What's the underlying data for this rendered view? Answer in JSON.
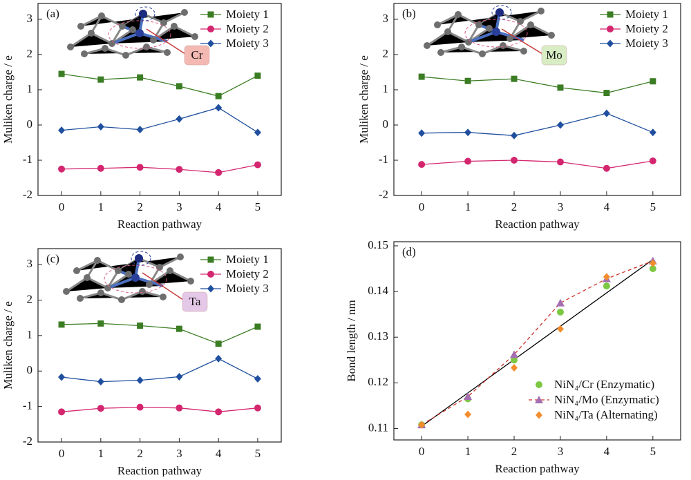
{
  "chart_data": [
    {
      "type": "line",
      "panel_label": "(a)",
      "annotation": {
        "text": "Cr",
        "color": "#f3b9b2"
      },
      "x_label": "Reaction pathway",
      "y_label": "Muliken charge / e",
      "x": [
        0,
        1,
        2,
        3,
        4,
        5
      ],
      "xlim": [
        -0.6,
        5.6
      ],
      "xticks": [
        0,
        1,
        2,
        3,
        4,
        5
      ],
      "ylim": [
        -2,
        3.45
      ],
      "yticks": [
        -2,
        -1,
        0,
        1,
        2,
        3
      ],
      "legend": "upper right",
      "series": [
        {
          "name": "Moiety 1",
          "color": "#3b7d23",
          "marker": "square",
          "line": "solid",
          "values": [
            1.45,
            1.29,
            1.35,
            1.1,
            0.82,
            1.4
          ]
        },
        {
          "name": "Moiety 2",
          "color": "#d4266f",
          "marker": "circle",
          "line": "solid",
          "values": [
            -1.25,
            -1.23,
            -1.2,
            -1.26,
            -1.35,
            -1.13
          ]
        },
        {
          "name": "Moiety 3",
          "color": "#1f4f9e",
          "marker": "diamond",
          "line": "solid",
          "values": [
            -0.15,
            -0.05,
            -0.13,
            0.17,
            0.49,
            -0.21
          ]
        }
      ]
    },
    {
      "type": "line",
      "panel_label": "(b)",
      "annotation": {
        "text": "Mo",
        "color": "#d8edc4"
      },
      "x_label": "Reaction pathway",
      "y_label": "Muliken charge / e",
      "x": [
        0,
        1,
        2,
        3,
        4,
        5
      ],
      "xlim": [
        -0.6,
        5.6
      ],
      "xticks": [
        0,
        1,
        2,
        3,
        4,
        5
      ],
      "ylim": [
        -2,
        3.45
      ],
      "yticks": [
        -2,
        -1,
        0,
        1,
        2,
        3
      ],
      "legend": "upper right",
      "series": [
        {
          "name": "Moiety 1",
          "color": "#3b7d23",
          "marker": "square",
          "line": "solid",
          "values": [
            1.37,
            1.25,
            1.31,
            1.06,
            0.91,
            1.24
          ]
        },
        {
          "name": "Moiety 2",
          "color": "#d4266f",
          "marker": "circle",
          "line": "solid",
          "values": [
            -1.12,
            -1.03,
            -1.0,
            -1.05,
            -1.23,
            -1.02
          ]
        },
        {
          "name": "Moiety 3",
          "color": "#1f4f9e",
          "marker": "diamond",
          "line": "solid",
          "values": [
            -0.23,
            -0.21,
            -0.3,
            0.0,
            0.33,
            -0.21
          ]
        }
      ]
    },
    {
      "type": "line",
      "panel_label": "(c)",
      "annotation": {
        "text": "Ta",
        "color": "#e5c8e7"
      },
      "x_label": "Reaction pathway",
      "y_label": "Muliken charge / e",
      "x": [
        0,
        1,
        2,
        3,
        4,
        5
      ],
      "xlim": [
        -0.6,
        5.6
      ],
      "xticks": [
        0,
        1,
        2,
        3,
        4,
        5
      ],
      "ylim": [
        -2,
        3.45
      ],
      "yticks": [
        -2,
        -1,
        0,
        1,
        2,
        3
      ],
      "legend": "upper right",
      "series": [
        {
          "name": "Moiety 1",
          "color": "#3b7d23",
          "marker": "square",
          "line": "solid",
          "values": [
            1.31,
            1.34,
            1.28,
            1.19,
            0.77,
            1.25
          ]
        },
        {
          "name": "Moiety 2",
          "color": "#d4266f",
          "marker": "circle",
          "line": "solid",
          "values": [
            -1.15,
            -1.05,
            -1.02,
            -1.04,
            -1.15,
            -1.04
          ]
        },
        {
          "name": "Moiety 3",
          "color": "#1f4f9e",
          "marker": "diamond",
          "line": "solid",
          "values": [
            -0.17,
            -0.3,
            -0.26,
            -0.16,
            0.35,
            -0.22
          ]
        }
      ]
    },
    {
      "type": "scatter",
      "panel_label": "(d)",
      "x_label": "Reaction pathway",
      "y_label": "Bond length / nm",
      "x": [
        0,
        1,
        2,
        3,
        4,
        5
      ],
      "xlim": [
        -0.6,
        5.6
      ],
      "xticks": [
        0,
        1,
        2,
        3,
        4,
        5
      ],
      "ylim": [
        0.1075,
        0.1509
      ],
      "yticks": [
        0.11,
        0.12,
        0.13,
        0.14,
        0.15
      ],
      "legend": "lower right",
      "fit_line": {
        "color": "#000000",
        "x": [
          0,
          5
        ],
        "values": [
          0.1105,
          0.147
        ]
      },
      "series": [
        {
          "name": "NiN₄/Cr (Enzymatic)",
          "color": "#7cc843",
          "marker": "circle",
          "line": "none",
          "values": [
            0.1108,
            0.1165,
            0.125,
            0.1355,
            0.1412,
            0.145
          ]
        },
        {
          "name": "NiN₄/Mo (Enzymatic)",
          "color": "#a46fb2",
          "marker": "triangle",
          "line": "dashed",
          "line_color": "#d2322a",
          "values": [
            0.1108,
            0.117,
            0.1262,
            0.1375,
            0.1428,
            0.1467
          ]
        },
        {
          "name": "NiN₄/Ta (Alternating)",
          "color": "#f28d2d",
          "marker": "diamond",
          "line": "none",
          "values": [
            0.1108,
            0.1131,
            0.1233,
            0.1318,
            0.1432,
            0.1462
          ]
        }
      ]
    }
  ]
}
